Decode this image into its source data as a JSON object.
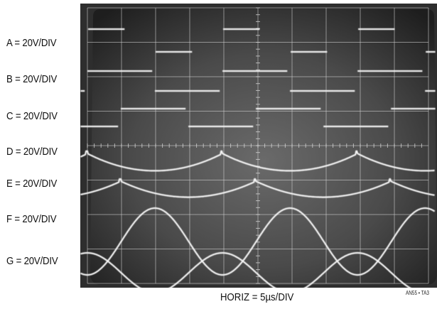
{
  "channels": [
    {
      "label": "A = 20V/DIV"
    },
    {
      "label": "B = 20V/DIV"
    },
    {
      "label": "C = 20V/DIV"
    },
    {
      "label": "D = 20V/DIV"
    },
    {
      "label": "E = 20V/DIV"
    },
    {
      "label": "F = 20V/DIV"
    },
    {
      "label": "G = 20V/DIV"
    }
  ],
  "horizontal_label": "HORIZ = 5µs/DIV",
  "figure_id": "AN55 • TA3",
  "chart_data": {
    "type": "line",
    "title": "",
    "xlabel": "HORIZ = 5µs/DIV",
    "time_per_div_us": 5,
    "grid": true,
    "x_divisions": 10,
    "y_divisions": 8,
    "xlim_us": [
      0,
      50
    ],
    "period_us": 19.8,
    "series": [
      {
        "name": "A = 20V/DIV",
        "waveform": "square",
        "volts_per_div": 20,
        "phase_us": 0.0
      },
      {
        "name": "B = 20V/DIV",
        "waveform": "square",
        "volts_per_div": 20,
        "phase_us": 0.0
      },
      {
        "name": "C = 20V/DIV",
        "waveform": "square",
        "volts_per_div": 20,
        "phase_us": 4.9
      },
      {
        "name": "D = 20V/DIV",
        "waveform": "scalloped",
        "volts_per_div": 20,
        "phase_us": 0.0
      },
      {
        "name": "E = 20V/DIV",
        "waveform": "scalloped",
        "volts_per_div": 20,
        "phase_us": 4.9
      },
      {
        "name": "F = 20V/DIV",
        "waveform": "sine",
        "volts_per_div": 20,
        "phase_us": 0.0
      },
      {
        "name": "G = 20V/DIV",
        "waveform": "sine",
        "volts_per_div": 20,
        "phase_us": 9.9
      }
    ]
  }
}
